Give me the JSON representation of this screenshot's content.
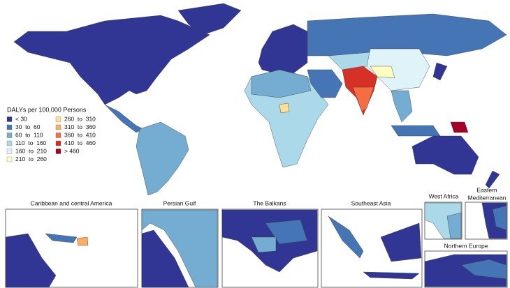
{
  "legend": {
    "title": "DALYs per 100,000 Persons",
    "items": [
      {
        "label": "< 30",
        "color": "#313695"
      },
      {
        "label": "30  to  60",
        "color": "#4575b4"
      },
      {
        "label": "60  to  110",
        "color": "#74add1"
      },
      {
        "label": "110  to  160",
        "color": "#abd9e9"
      },
      {
        "label": "160  to  210",
        "color": "#e0f3f8"
      },
      {
        "label": "210  to  260",
        "color": "#ffffbf"
      },
      {
        "label": "260  to  310",
        "color": "#fee090"
      },
      {
        "label": "310  to  360",
        "color": "#fdae61"
      },
      {
        "label": "360  to  410",
        "color": "#f46d43"
      },
      {
        "label": "410  to  460",
        "color": "#d73027"
      },
      {
        "label": "> 460",
        "color": "#a50026"
      }
    ]
  },
  "insets": [
    {
      "title": "Caribbean and central America"
    },
    {
      "title": "Persian Gulf"
    },
    {
      "title": "The Balkans"
    },
    {
      "title": "Southeast Asia"
    },
    {
      "title": "West Africa"
    },
    {
      "lines": [
        "Eastern",
        "Mediterranean"
      ]
    },
    {
      "title": "Northern Europe"
    }
  ]
}
